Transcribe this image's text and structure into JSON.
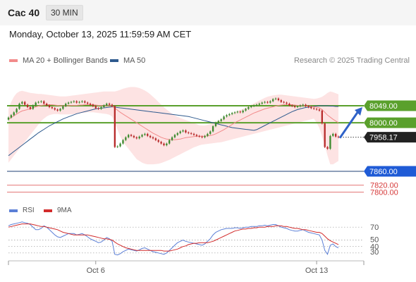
{
  "header": {
    "title": "Cac 40",
    "timeframe": "30 MIN"
  },
  "datetime": "Monday, October 13, 2025 11:59:59 AM CET",
  "legend": {
    "ma20": {
      "label": "MA 20 + Bollinger Bands",
      "color": "#f28b8b"
    },
    "ma50": {
      "label": "MA 50",
      "color": "#2e5a8e"
    },
    "research": "Research © 2025 Trading Central"
  },
  "chart_data": [
    {
      "type": "candlestick",
      "ylim": [
        7800,
        8075
      ],
      "x_ticks": [
        "Oct 6",
        "Oct 13"
      ],
      "price_levels": [
        {
          "value": 8049.0,
          "label": "8049.00",
          "style": "resistance",
          "color": "#5aa02c"
        },
        {
          "value": 8000.0,
          "label": "8000.00",
          "style": "resistance",
          "color": "#5aa02c"
        },
        {
          "value": 7958.17,
          "label": "7958.17",
          "style": "last-price",
          "color": "#222222"
        },
        {
          "value": 7860.0,
          "label": "7860.00",
          "style": "pivot",
          "color": "#1f5bd6"
        },
        {
          "value": 7820.0,
          "label": "7820.00",
          "style": "support",
          "color": "#e06060"
        },
        {
          "value": 7800.0,
          "label": "7800.00",
          "style": "support",
          "color": "#e06060"
        }
      ],
      "close": [
        8015,
        8022,
        8030,
        8040,
        8055,
        8060,
        8052,
        8045,
        8040,
        8050,
        8058,
        8060,
        8062,
        8055,
        8050,
        8045,
        8042,
        8038,
        8035,
        8040,
        8048,
        8055,
        8058,
        8060,
        8062,
        8058,
        8060,
        8062,
        8058,
        8055,
        8052,
        8048,
        8042,
        8040,
        8045,
        8050,
        8055,
        8052,
        8048,
        7930,
        7932,
        7940,
        7950,
        7958,
        7965,
        7962,
        7958,
        7955,
        7960,
        7965,
        7968,
        7962,
        7958,
        7955,
        7950,
        7945,
        7940,
        7935,
        7940,
        7950,
        7958,
        7965,
        7970,
        7975,
        7978,
        7972,
        7970,
        7968,
        7965,
        7962,
        7960,
        7958,
        7962,
        7968,
        7975,
        7990,
        8000,
        8005,
        8010,
        8018,
        8022,
        8025,
        8028,
        8030,
        8032,
        8030,
        8035,
        8040,
        8045,
        8048,
        8050,
        8052,
        8055,
        8058,
        8060,
        8058,
        8062,
        8068,
        8070,
        8065,
        8060,
        8058,
        8055,
        8050,
        8048,
        8045,
        8047,
        8050,
        8052,
        8048,
        8045,
        8042,
        8040,
        8038,
        8035,
        7998,
        7930,
        7925,
        7962,
        7968,
        7960,
        7958
      ],
      "ma20": [
        8010,
        8015,
        8020,
        8025,
        8030,
        8034,
        8036,
        8038,
        8040,
        8043,
        8046,
        8048,
        8050,
        8051,
        8052,
        8052,
        8052,
        8051,
        8050,
        8049,
        8049,
        8049,
        8049,
        8050,
        8050,
        8050,
        8051,
        8051,
        8052,
        8052,
        8052,
        8052,
        8051,
        8050,
        8050,
        8049,
        8049,
        8049,
        8048,
        8042,
        8036,
        8030,
        8025,
        8020,
        8015,
        8010,
        8005,
        8000,
        7995,
        7990,
        7985,
        7980,
        7975,
        7970,
        7966,
        7962,
        7958,
        7955,
        7953,
        7952,
        7951,
        7951,
        7952,
        7953,
        7955,
        7957,
        7958,
        7959,
        7960,
        7961,
        7961,
        7961,
        7961,
        7962,
        7963,
        7965,
        7968,
        7972,
        7976,
        7980,
        7985,
        7990,
        7995,
        8000,
        8004,
        8008,
        8012,
        8016,
        8020,
        8024,
        8028,
        8031,
        8034,
        8037,
        8040,
        8042,
        8044,
        8046,
        8048,
        8050,
        8051,
        8052,
        8052,
        8052,
        8052,
        8051,
        8050,
        8050,
        8050,
        8049,
        8048,
        8047,
        8046,
        8045,
        8043,
        8038,
        8030,
        8022,
        8016,
        8010,
        8005,
        8000
      ],
      "ma50": [
        7905,
        7911,
        7917,
        7923,
        7929,
        7935,
        7941,
        7947,
        7953,
        7959,
        7965,
        7971,
        7976,
        7981,
        7986,
        7991,
        7995,
        7999,
        8003,
        8007,
        8011,
        8014,
        8017,
        8020,
        8023,
        8026,
        8028,
        8030,
        8032,
        8034,
        8036,
        8038,
        8040,
        8041,
        8042,
        8043,
        8044,
        8045,
        8046,
        8045,
        8044,
        8043,
        8042,
        8041,
        8040,
        8039,
        8038,
        8037,
        8036,
        8035,
        8034,
        8033,
        8032,
        8031,
        8030,
        8029,
        8028,
        8027,
        8026,
        8025,
        8024,
        8023,
        8022,
        8021,
        8020,
        8019,
        8018,
        8016,
        8014,
        8012,
        8010,
        8008,
        8006,
        8004,
        8002,
        8000,
        7998,
        7996,
        7994,
        7992,
        7990,
        7988,
        7986,
        7985,
        7984,
        7983,
        7982,
        7981,
        7980,
        7979,
        7978,
        7980,
        7984,
        7988,
        7992,
        7996,
        8000,
        8004,
        8008,
        8012,
        8016,
        8020,
        8024,
        8028,
        8032,
        8035,
        8038,
        8040,
        8042,
        8044,
        8045,
        8046,
        8047,
        8048,
        8049,
        8049,
        8049,
        8049,
        8048,
        8048,
        8047,
        8047
      ],
      "bb_upper": [
        8040,
        8060,
        8075,
        8085,
        8090,
        8092,
        8090,
        8088,
        8086,
        8085,
        8084,
        8083,
        8083,
        8082,
        8081,
        8080,
        8079,
        8078,
        8077,
        8076,
        8076,
        8076,
        8077,
        8078,
        8079,
        8080,
        8081,
        8082,
        8083,
        8084,
        8085,
        8086,
        8087,
        8088,
        8089,
        8090,
        8090,
        8090,
        8090,
        8090,
        8092,
        8095,
        8098,
        8100,
        8102,
        8103,
        8103,
        8102,
        8100,
        8097,
        8093,
        8088,
        8082,
        8075,
        8068,
        8060,
        8052,
        8045,
        8038,
        8032,
        8026,
        8021,
        8017,
        8014,
        8011,
        8008,
        8005,
        8002,
        7999,
        7996,
        7993,
        7992,
        7992,
        7994,
        7996,
        7999,
        8002,
        8006,
        8010,
        8014,
        8018,
        8022,
        8026,
        8030,
        8034,
        8037,
        8040,
        8044,
        8048,
        8052,
        8056,
        8060,
        8064,
        8068,
        8072,
        8075,
        8077,
        8079,
        8080,
        8081,
        8081,
        8080,
        8079,
        8078,
        8077,
        8076,
        8075,
        8074,
        8073,
        8072,
        8071,
        8070,
        8069,
        8070,
        8072,
        8075,
        8080,
        8086,
        8090,
        8088,
        8085,
        8082
      ],
      "bb_lower": [
        7885,
        7895,
        7905,
        7915,
        7925,
        7935,
        7945,
        7955,
        7965,
        7975,
        7985,
        7995,
        8005,
        8012,
        8018,
        8022,
        8024,
        8025,
        8025,
        8024,
        8024,
        8024,
        8024,
        8024,
        8025,
        8026,
        8027,
        8028,
        8029,
        8030,
        8030,
        8030,
        8029,
        8028,
        8027,
        8026,
        8025,
        8023,
        8018,
        8000,
        7980,
        7960,
        7945,
        7935,
        7925,
        7915,
        7905,
        7895,
        7890,
        7885,
        7882,
        7880,
        7880,
        7880,
        7881,
        7882,
        7884,
        7887,
        7890,
        7893,
        7897,
        7901,
        7905,
        7909,
        7913,
        7917,
        7921,
        7925,
        7929,
        7932,
        7935,
        7937,
        7938,
        7939,
        7940,
        7941,
        7942,
        7943,
        7944,
        7946,
        7948,
        7950,
        7952,
        7954,
        7956,
        7958,
        7960,
        7962,
        7964,
        7966,
        7968,
        7970,
        7972,
        7974,
        7976,
        7978,
        7980,
        7982,
        7984,
        7986,
        7988,
        7990,
        7992,
        7994,
        7996,
        7998,
        8000,
        8002,
        8004,
        8006,
        8008,
        8010,
        8012,
        8000,
        7985,
        7960,
        7935,
        7905,
        7880,
        7880,
        7885,
        7890
      ]
    },
    {
      "type": "line",
      "ylim": [
        20,
        80
      ],
      "y_ticks": [
        70,
        50,
        40,
        30
      ],
      "legend": [
        {
          "name": "RSI",
          "color": "#5b7fd6"
        },
        {
          "name": "9MA",
          "color": "#d22b2b"
        }
      ],
      "rsi": [
        72,
        74,
        75,
        76,
        77,
        78,
        77,
        76,
        74,
        70,
        66,
        66,
        68,
        72,
        70,
        66,
        62,
        58,
        55,
        54,
        56,
        58,
        60,
        60,
        60,
        58,
        59,
        60,
        58,
        55,
        52,
        50,
        48,
        46,
        47,
        50,
        54,
        52,
        48,
        28,
        27,
        29,
        32,
        34,
        36,
        35,
        34,
        33,
        35,
        37,
        38,
        36,
        34,
        32,
        31,
        30,
        29,
        28,
        30,
        34,
        38,
        42,
        46,
        48,
        50,
        48,
        47,
        46,
        45,
        44,
        43,
        42,
        44,
        48,
        52,
        58,
        62,
        64,
        66,
        67,
        68,
        68,
        68,
        69,
        69,
        68,
        69,
        70,
        70,
        71,
        71,
        71,
        72,
        72,
        73,
        72,
        73,
        74,
        74,
        72,
        70,
        69,
        68,
        66,
        65,
        64,
        64,
        65,
        66,
        64,
        62,
        61,
        60,
        59,
        58,
        50,
        34,
        28,
        42,
        44,
        40,
        38
      ],
      "ma9": [
        70,
        71,
        72,
        73,
        74,
        75,
        75,
        75,
        75,
        74,
        73,
        72,
        71,
        71,
        70,
        69,
        68,
        67,
        66,
        64,
        62,
        61,
        60,
        59,
        58,
        58,
        58,
        58,
        58,
        58,
        57,
        56,
        55,
        54,
        53,
        52,
        52,
        51,
        50,
        47,
        44,
        42,
        40,
        38,
        37,
        36,
        35,
        34,
        34,
        34,
        34,
        34,
        34,
        34,
        34,
        34,
        34,
        33,
        33,
        33,
        34,
        35,
        36,
        38,
        40,
        41,
        43,
        44,
        45,
        45,
        46,
        46,
        46,
        46,
        47,
        48,
        50,
        52,
        54,
        56,
        58,
        60,
        62,
        64,
        65,
        66,
        67,
        67,
        68,
        68,
        69,
        69,
        70,
        70,
        70,
        71,
        71,
        71,
        72,
        72,
        72,
        71,
        71,
        70,
        69,
        68,
        68,
        67,
        66,
        66,
        65,
        64,
        63,
        62,
        62,
        60,
        56,
        52,
        49,
        47,
        45,
        43
      ]
    }
  ]
}
